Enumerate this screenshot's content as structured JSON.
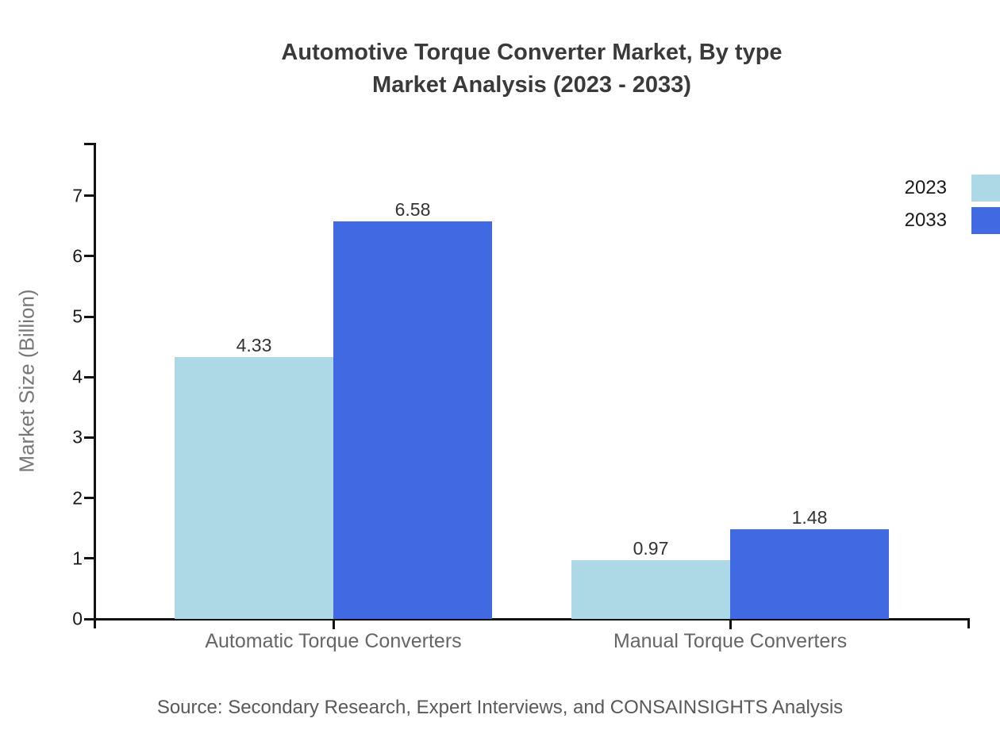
{
  "title": {
    "line1": "Automotive Torque Converter Market, By type",
    "line2": "Market Analysis (2023 - 2033)"
  },
  "legend": {
    "position": "top-right",
    "items": [
      {
        "label": "2023",
        "color": "#ADD8E6"
      },
      {
        "label": "2033",
        "color": "#4169E1"
      }
    ]
  },
  "y_axis": {
    "label": "Market Size (Billion)",
    "ticks": [
      0,
      1,
      2,
      3,
      4,
      5,
      6,
      7
    ]
  },
  "source": "Source: Secondary Research, Expert Interviews, and CONSAINSIGHTS Analysis",
  "colors": {
    "title": "#3a3a3a",
    "axis": "#111111",
    "tick_label": "#1a1a1a",
    "category_label": "#666666",
    "value_label": "#333333",
    "y_axis_title": "#777777",
    "source": "#595959"
  },
  "chart_data": {
    "type": "bar",
    "title": "Automotive Torque Converter Market, By type Market Analysis (2023 - 2033)",
    "categories": [
      "Automatic Torque Converters",
      "Manual Torque Converters"
    ],
    "series": [
      {
        "name": "2023",
        "color": "#ADD8E6",
        "values": [
          4.33,
          0.97
        ]
      },
      {
        "name": "2033",
        "color": "#4169E1",
        "values": [
          6.58,
          1.48
        ]
      }
    ],
    "xlabel": "",
    "ylabel": "Market Size (Billion)",
    "ylim": [
      0,
      7.9
    ],
    "yticks": [
      0,
      1,
      2,
      3,
      4,
      5,
      6,
      7
    ],
    "grid": false,
    "legend_position": "top-right",
    "value_labels": [
      [
        4.33,
        0.97
      ],
      [
        6.58,
        1.48
      ]
    ],
    "source": "Source: Secondary Research, Expert Interviews, and CONSAINSIGHTS Analysis"
  }
}
